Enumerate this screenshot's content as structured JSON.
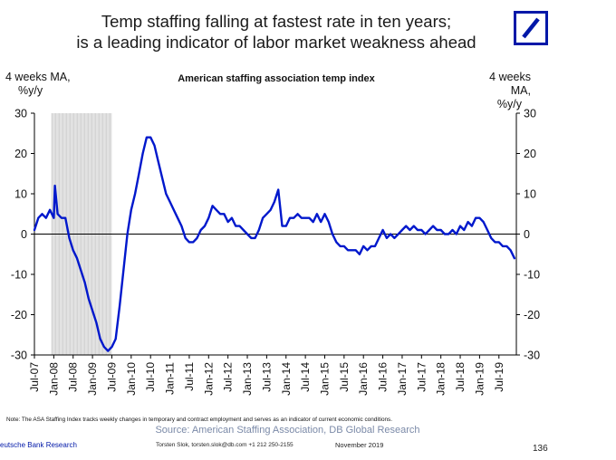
{
  "header": {
    "title_line1": "Temp staffing falling at fastest rate in ten years;",
    "title_line2": "is a leading indicator of labor market weakness ahead",
    "logo": "deutsche-bank-logo"
  },
  "chart_data": {
    "type": "line",
    "title": "American staffing association temp index",
    "ylabel_left_line1": "4 weeks MA,",
    "ylabel_left_line2": "%y/y",
    "ylabel_right_line1": "4 weeks MA,",
    "ylabel_right_line2": "%y/y",
    "ylim": [
      -30,
      30
    ],
    "yticks": [
      30,
      20,
      10,
      0,
      -10,
      -20,
      -30
    ],
    "ytick_labels": [
      "30",
      "20",
      "10",
      "0",
      "-10",
      "-20",
      "-30"
    ],
    "xlim": [
      2007.5,
      2019.95
    ],
    "xticks": [
      2007.5,
      2008,
      2008.5,
      2009,
      2009.5,
      2010,
      2010.5,
      2011,
      2011.5,
      2012,
      2012.5,
      2013,
      2013.5,
      2014,
      2014.5,
      2015,
      2015.5,
      2016,
      2016.5,
      2017,
      2017.5,
      2018,
      2018.5,
      2019,
      2019.5
    ],
    "xtick_labels": [
      "Jul-07",
      "Jan-08",
      "Jul-08",
      "Jan-09",
      "Jul-09",
      "Jan-10",
      "Jul-10",
      "Jan-11",
      "Jul-11",
      "Jan-12",
      "Jul-12",
      "Jan-13",
      "Jul-13",
      "Jan-14",
      "Jul-14",
      "Jan-15",
      "Jul-15",
      "Jan-16",
      "Jul-16",
      "Jan-17",
      "Jul-17",
      "Jan-18",
      "Jul-18",
      "Jan-19",
      "Jul-19"
    ],
    "shaded_region": {
      "label": "recession",
      "x_start": 2007.95,
      "x_end": 2009.5
    },
    "series": [
      {
        "name": "ASA temp index 4-week MA %y/y",
        "color": "#0018cc",
        "x": [
          2007.5,
          2007.6,
          2007.7,
          2007.8,
          2007.9,
          2008.0,
          2008.03,
          2008.1,
          2008.2,
          2008.3,
          2008.4,
          2008.5,
          2008.6,
          2008.7,
          2008.8,
          2008.9,
          2009.0,
          2009.1,
          2009.2,
          2009.3,
          2009.4,
          2009.5,
          2009.6,
          2009.7,
          2009.8,
          2009.9,
          2010.0,
          2010.1,
          2010.2,
          2010.3,
          2010.4,
          2010.5,
          2010.6,
          2010.7,
          2010.8,
          2010.9,
          2011.0,
          2011.1,
          2011.2,
          2011.3,
          2011.4,
          2011.5,
          2011.6,
          2011.7,
          2011.8,
          2011.9,
          2012.0,
          2012.1,
          2012.2,
          2012.3,
          2012.4,
          2012.5,
          2012.6,
          2012.7,
          2012.8,
          2012.9,
          2013.0,
          2013.1,
          2013.2,
          2013.3,
          2013.4,
          2013.5,
          2013.6,
          2013.7,
          2013.8,
          2013.9,
          2014.0,
          2014.05,
          2014.1,
          2014.2,
          2014.3,
          2014.4,
          2014.5,
          2014.6,
          2014.7,
          2014.8,
          2014.9,
          2015.0,
          2015.1,
          2015.2,
          2015.3,
          2015.4,
          2015.5,
          2015.6,
          2015.7,
          2015.8,
          2015.9,
          2016.0,
          2016.1,
          2016.2,
          2016.3,
          2016.4,
          2016.5,
          2016.6,
          2016.7,
          2016.8,
          2016.9,
          2017.0,
          2017.1,
          2017.2,
          2017.3,
          2017.4,
          2017.5,
          2017.6,
          2017.7,
          2017.8,
          2017.9,
          2018.0,
          2018.1,
          2018.2,
          2018.3,
          2018.4,
          2018.5,
          2018.6,
          2018.7,
          2018.8,
          2018.9,
          2019.0,
          2019.1,
          2019.2,
          2019.3,
          2019.4,
          2019.5,
          2019.6,
          2019.7,
          2019.8,
          2019.9
        ],
        "y": [
          1,
          4,
          5,
          4,
          6,
          4,
          12,
          5,
          4,
          4,
          -1,
          -4,
          -6,
          -9,
          -12,
          -16,
          -19,
          -22,
          -26,
          -28,
          -29,
          -28,
          -26,
          -18,
          -9,
          0,
          6,
          10,
          15,
          20,
          24,
          24,
          22,
          18,
          14,
          10,
          8,
          6,
          4,
          2,
          -1,
          -2,
          -2,
          -1,
          1,
          2,
          4,
          7,
          6,
          5,
          5,
          3,
          4,
          2,
          2,
          1,
          0,
          -1,
          -1,
          1,
          4,
          5,
          6,
          8,
          11,
          2,
          2,
          3,
          4,
          4,
          5,
          4,
          4,
          4,
          3,
          5,
          3,
          5,
          3,
          0,
          -2,
          -3,
          -3,
          -4,
          -4,
          -4,
          -5,
          -3,
          -4,
          -3,
          -3,
          -1,
          1,
          -1,
          0,
          -1,
          0,
          1,
          2,
          1,
          2,
          1,
          1,
          0,
          1,
          2,
          1,
          1,
          0,
          0,
          1,
          0,
          2,
          1,
          3,
          2,
          4,
          4,
          3,
          1,
          -1,
          -2,
          -2,
          -3,
          -3,
          -4,
          -6
        ]
      }
    ]
  },
  "footer": {
    "note": "Note: The ASA Staffing Index tracks weekly changes in temporary and contract employment and serves as an indicator of current economic conditions.",
    "source": "Source: American Staffing Association, DB Global Research",
    "brand": "eutsche Bank Research",
    "contact": "Torsten Slok, torsten.slok@db.com  +1 212 250-2155",
    "date": "November 2019",
    "page_number": "136"
  }
}
